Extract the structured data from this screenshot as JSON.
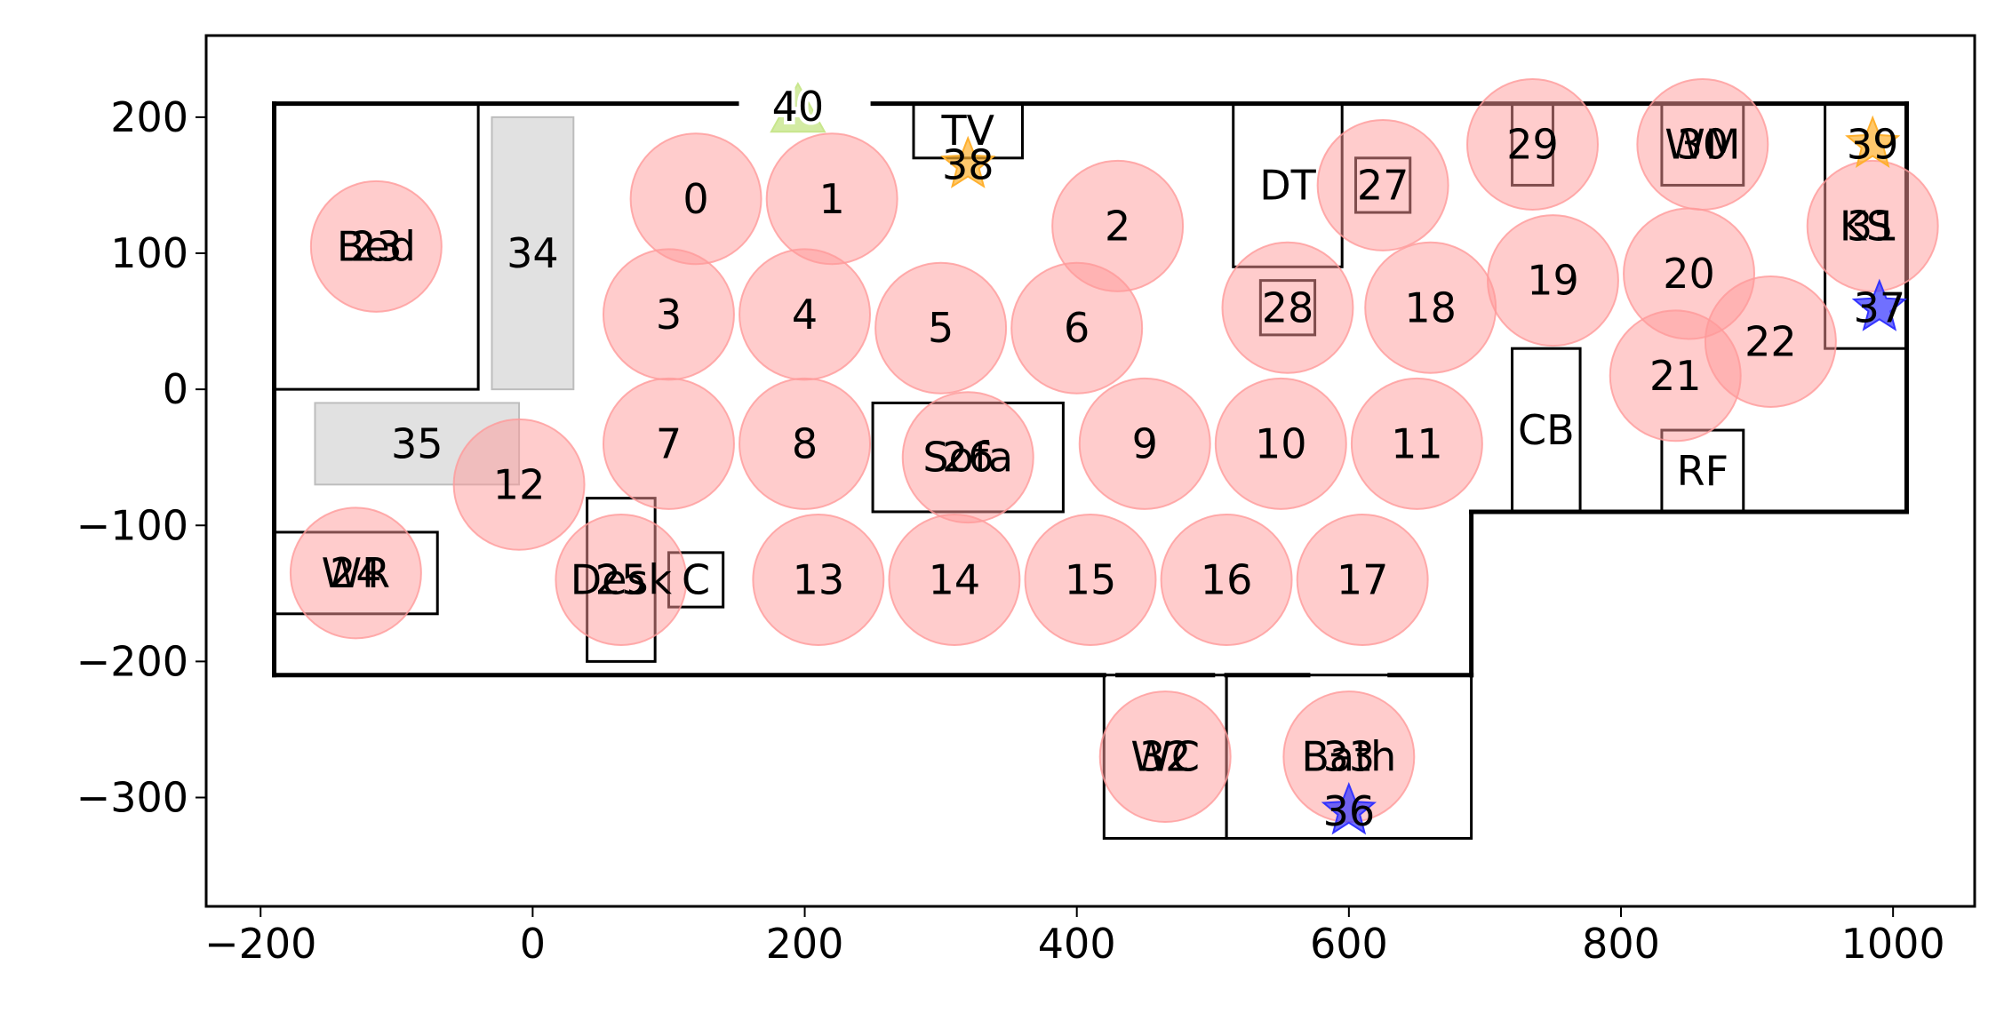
{
  "chart_data": {
    "type": "scatter",
    "title": "",
    "xlabel": "",
    "ylabel": "",
    "xlim": [
      -240,
      1060
    ],
    "ylim": [
      -380,
      260
    ],
    "grid": false,
    "x_ticks": [
      {
        "value": -200,
        "label": "−200"
      },
      {
        "value": 0,
        "label": "0"
      },
      {
        "value": 200,
        "label": "200"
      },
      {
        "value": 400,
        "label": "400"
      },
      {
        "value": 600,
        "label": "600"
      },
      {
        "value": 800,
        "label": "800"
      },
      {
        "value": 1000,
        "label": "1000"
      }
    ],
    "y_ticks": [
      {
        "value": 200,
        "label": "200"
      },
      {
        "value": 100,
        "label": "100"
      },
      {
        "value": 0,
        "label": "0"
      },
      {
        "value": -100,
        "label": "−100"
      },
      {
        "value": -200,
        "label": "−200"
      },
      {
        "value": -300,
        "label": "−300"
      }
    ],
    "walls": [
      [
        [
          -190,
          210
        ],
        [
          150,
          210
        ]
      ],
      [
        [
          250,
          210
        ],
        [
          1010,
          210
        ]
      ],
      [
        [
          1010,
          210
        ],
        [
          1010,
          -90
        ]
      ],
      [
        [
          1010,
          -90
        ],
        [
          690,
          -90
        ]
      ],
      [
        [
          690,
          -90
        ],
        [
          690,
          -210
        ]
      ],
      [
        [
          690,
          -210
        ],
        [
          630,
          -210
        ]
      ],
      [
        [
          570,
          -210
        ],
        [
          510,
          -210
        ]
      ],
      [
        [
          500,
          -210
        ],
        [
          430,
          -210
        ]
      ],
      [
        [
          420,
          -210
        ],
        [
          -190,
          -210
        ]
      ],
      [
        [
          -190,
          -210
        ],
        [
          -190,
          210
        ]
      ]
    ],
    "furniture": [
      {
        "label": "Bed",
        "x0": -190,
        "y0": 0,
        "x1": -40,
        "y1": 210
      },
      {
        "label": "TV",
        "x0": 280,
        "y0": 170,
        "x1": 360,
        "y1": 210
      },
      {
        "label": "DT",
        "x0": 515,
        "y0": 90,
        "x1": 595,
        "y1": 210
      },
      {
        "label": "",
        "x0": 605,
        "y0": 130,
        "x1": 645,
        "y1": 170
      },
      {
        "label": "",
        "x0": 720,
        "y0": 150,
        "x1": 750,
        "y1": 210
      },
      {
        "label": "WM",
        "x0": 830,
        "y0": 150,
        "x1": 890,
        "y1": 210
      },
      {
        "label": "KS",
        "x0": 950,
        "y0": 30,
        "x1": 1010,
        "y1": 210
      },
      {
        "label": "",
        "x0": 535,
        "y0": 40,
        "x1": 575,
        "y1": 80
      },
      {
        "label": "CB",
        "x0": 720,
        "y0": -90,
        "x1": 770,
        "y1": 30
      },
      {
        "label": "RF",
        "x0": 830,
        "y0": -90,
        "x1": 890,
        "y1": -30
      },
      {
        "label": "Sofa",
        "x0": 250,
        "y0": -90,
        "x1": 390,
        "y1": -10
      },
      {
        "label": "WR",
        "x0": -190,
        "y0": -165,
        "x1": -70,
        "y1": -105
      },
      {
        "label": "Desk",
        "x0": 40,
        "y0": -200,
        "x1": 90,
        "y1": -80
      },
      {
        "label": "C",
        "x0": 100,
        "y0": -160,
        "x1": 140,
        "y1": -120
      },
      {
        "label": "WC",
        "x0": 420,
        "y0": -330,
        "x1": 510,
        "y1": -210
      },
      {
        "label": "Bath",
        "x0": 510,
        "y0": -330,
        "x1": 690,
        "y1": -210
      }
    ],
    "zones": [
      {
        "label": "34",
        "x0": -30,
        "y0": 0,
        "x1": 30,
        "y1": 200
      },
      {
        "label": "35",
        "x0": -160,
        "y0": -70,
        "x1": -10,
        "y1": -10
      }
    ],
    "circles": [
      {
        "label": "0",
        "x": 120,
        "y": 140
      },
      {
        "label": "1",
        "x": 220,
        "y": 140
      },
      {
        "label": "2",
        "x": 430,
        "y": 120
      },
      {
        "label": "3",
        "x": 100,
        "y": 55
      },
      {
        "label": "4",
        "x": 200,
        "y": 55
      },
      {
        "label": "5",
        "x": 300,
        "y": 45
      },
      {
        "label": "6",
        "x": 400,
        "y": 45
      },
      {
        "label": "7",
        "x": 100,
        "y": -40
      },
      {
        "label": "8",
        "x": 200,
        "y": -40
      },
      {
        "label": "9",
        "x": 450,
        "y": -40
      },
      {
        "label": "10",
        "x": 550,
        "y": -40
      },
      {
        "label": "11",
        "x": 650,
        "y": -40
      },
      {
        "label": "12",
        "x": -10,
        "y": -70
      },
      {
        "label": "13",
        "x": 210,
        "y": -140
      },
      {
        "label": "14",
        "x": 310,
        "y": -140
      },
      {
        "label": "15",
        "x": 410,
        "y": -140
      },
      {
        "label": "16",
        "x": 510,
        "y": -140
      },
      {
        "label": "17",
        "x": 610,
        "y": -140
      },
      {
        "label": "18",
        "x": 660,
        "y": 60
      },
      {
        "label": "19",
        "x": 750,
        "y": 80
      },
      {
        "label": "20",
        "x": 850,
        "y": 85
      },
      {
        "label": "21",
        "x": 840,
        "y": 10
      },
      {
        "label": "22",
        "x": 910,
        "y": 35
      },
      {
        "label": "23",
        "x": -115,
        "y": 105
      },
      {
        "label": "24",
        "x": -130,
        "y": -135
      },
      {
        "label": "25",
        "x": 65,
        "y": -140
      },
      {
        "label": "26",
        "x": 320,
        "y": -50
      },
      {
        "label": "27",
        "x": 625,
        "y": 150
      },
      {
        "label": "28",
        "x": 555,
        "y": 60
      },
      {
        "label": "29",
        "x": 735,
        "y": 180
      },
      {
        "label": "30",
        "x": 860,
        "y": 180
      },
      {
        "label": "31",
        "x": 985,
        "y": 120
      },
      {
        "label": "32",
        "x": 465,
        "y": -270
      },
      {
        "label": "33",
        "x": 600,
        "y": -270
      }
    ],
    "circle_radius": 48,
    "circle_color": "#ff9a9a",
    "stars": [
      {
        "label": "36",
        "x": 600,
        "y": -310,
        "color": "#3333ff"
      },
      {
        "label": "37",
        "x": 990,
        "y": 60,
        "color": "#3333ff"
      },
      {
        "label": "38",
        "x": 320,
        "y": 165,
        "color": "#ffb02e"
      },
      {
        "label": "39",
        "x": 985,
        "y": 180,
        "color": "#ffb02e"
      }
    ],
    "triangles": [
      {
        "label": "40",
        "x": 195,
        "y": 205,
        "color": "#c8e68c"
      }
    ],
    "zone_color": "#d9d9d9"
  }
}
